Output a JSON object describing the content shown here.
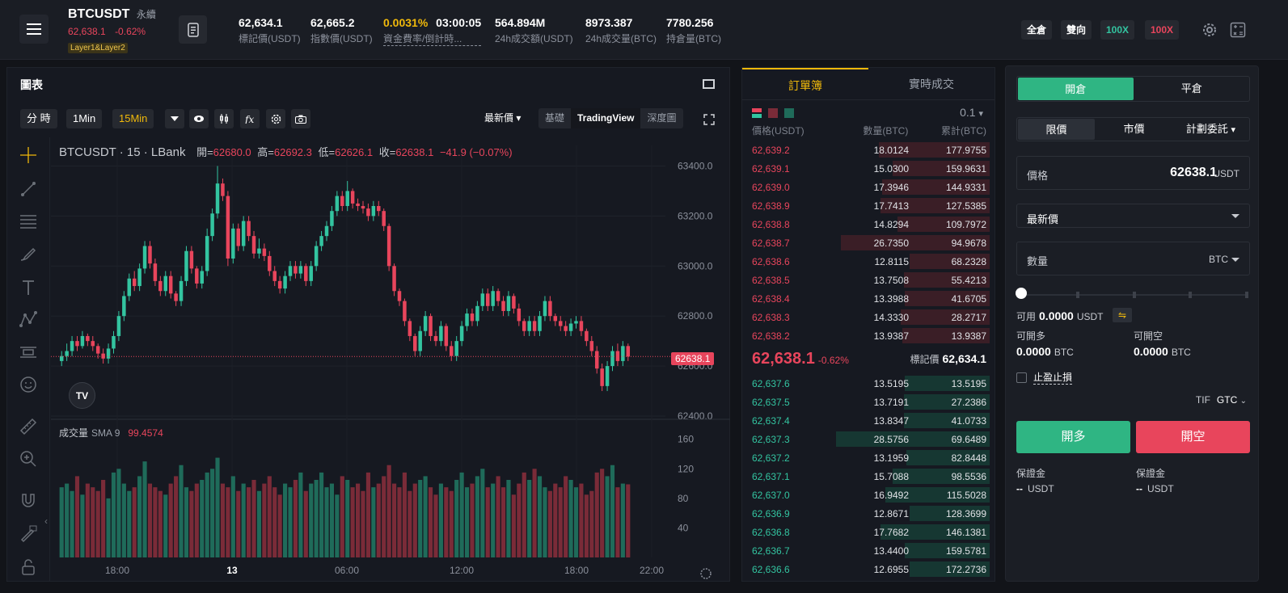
{
  "header": {
    "symbol": "BTCUSDT",
    "product_type": "永續",
    "last_price": "62,638.1",
    "change": "-0.62%",
    "tag": "Layer1&Layer2",
    "stats": [
      {
        "value": "62,634.1",
        "label": "標記價(USDT)"
      },
      {
        "value": "62,665.2",
        "label": "指數價(USDT)"
      },
      {
        "value": "0.0031%",
        "label": "資金費率/倒計時..."
      },
      {
        "value": "03:00:05",
        "label": ""
      },
      {
        "value": "564.894M",
        "label": "24h成交額(USDT)"
      },
      {
        "value": "8973.387",
        "label": "24h成交量(BTC)"
      },
      {
        "value": "7780.256",
        "label": "持倉量(BTC)"
      }
    ],
    "buttons": {
      "cross": "全倉",
      "mode": "雙向",
      "lev_long": "100X",
      "lev_short": "100X"
    }
  },
  "chart_panel": {
    "title": "圖表",
    "toolbar": {
      "timeshare": "分 時",
      "int1": "1Min",
      "int2": "15Min",
      "price_type": "最新價"
    },
    "view_tabs": [
      "基礎",
      "TradingView",
      "深度圖"
    ],
    "legend": {
      "symbol": "BTCUSDT · 15 · LBank",
      "open_label": "開=",
      "open": "62680.0",
      "high_label": "高=",
      "high": "62692.3",
      "low_label": "低=",
      "low": "62626.1",
      "close_label": "收=",
      "close": "62638.1",
      "chg": "−41.9 (−0.07%)"
    },
    "volume_legend": {
      "label": "成交量",
      "sma": "SMA 9",
      "value": "99.4574"
    },
    "price_tag": "62638.1",
    "tv_logo": "TV"
  },
  "chart_data": {
    "type": "candlestick",
    "price_axis": {
      "ticks": [
        "63400.0",
        "63200.0",
        "63000.0",
        "62800.0",
        "62600.0",
        "62400.0"
      ],
      "range": [
        62400,
        63450
      ]
    },
    "volume_axis": {
      "ticks": [
        "160",
        "120",
        "80",
        "40"
      ],
      "range": [
        0,
        175
      ]
    },
    "x_ticks": [
      "18:00",
      "13",
      "06:00",
      "12:00",
      "18:00",
      "22:00"
    ],
    "last_price": 62638.1,
    "candles": [
      [
        62620,
        62640,
        62600,
        62660
      ],
      [
        62640,
        62660,
        62620,
        62690
      ],
      [
        62660,
        62700,
        62640,
        62720
      ],
      [
        62700,
        62680,
        62660,
        62720
      ],
      [
        62680,
        62720,
        62670,
        62740
      ],
      [
        62720,
        62700,
        62680,
        62730
      ],
      [
        62700,
        62680,
        62660,
        62720
      ],
      [
        62680,
        62650,
        62630,
        62690
      ],
      [
        62650,
        62630,
        62610,
        62670
      ],
      [
        62630,
        62670,
        62610,
        62690
      ],
      [
        62670,
        62720,
        62650,
        62740
      ],
      [
        62720,
        62800,
        62700,
        62820
      ],
      [
        62800,
        62880,
        62780,
        62900
      ],
      [
        62880,
        62950,
        62860,
        62970
      ],
      [
        62950,
        62920,
        62900,
        62980
      ],
      [
        62920,
        62990,
        62900,
        63010
      ],
      [
        62990,
        63080,
        62970,
        63100
      ],
      [
        63080,
        63010,
        62990,
        63100
      ],
      [
        63010,
        62940,
        62920,
        63030
      ],
      [
        62940,
        62900,
        62880,
        62960
      ],
      [
        62900,
        62960,
        62880,
        62980
      ],
      [
        62960,
        62890,
        62870,
        62980
      ],
      [
        62890,
        62860,
        62840,
        62900
      ],
      [
        62860,
        62940,
        62840,
        62960
      ],
      [
        62940,
        63060,
        62920,
        63080
      ],
      [
        63060,
        62990,
        62970,
        63080
      ],
      [
        62990,
        62930,
        62910,
        63000
      ],
      [
        62930,
        62980,
        62910,
        63000
      ],
      [
        62980,
        63120,
        62960,
        63150
      ],
      [
        63120,
        63210,
        63100,
        63230
      ],
      [
        63210,
        63330,
        63190,
        63400
      ],
      [
        63330,
        63280,
        63260,
        63350
      ],
      [
        63280,
        63030,
        63000,
        63300
      ],
      [
        63030,
        63150,
        63010,
        63170
      ],
      [
        63150,
        63080,
        63060,
        63170
      ],
      [
        63080,
        63180,
        63060,
        63200
      ],
      [
        63180,
        63120,
        63100,
        63200
      ],
      [
        63120,
        63050,
        63030,
        63140
      ],
      [
        63050,
        63070,
        63030,
        63110
      ],
      [
        63070,
        63040,
        63020,
        63090
      ],
      [
        63040,
        62980,
        62960,
        63060
      ],
      [
        62980,
        62940,
        62920,
        63000
      ],
      [
        62940,
        62910,
        62890,
        62960
      ],
      [
        62910,
        62960,
        62890,
        62980
      ],
      [
        62960,
        63000,
        62940,
        63020
      ],
      [
        63000,
        62970,
        62950,
        63020
      ],
      [
        62970,
        63000,
        62950,
        63020
      ],
      [
        63000,
        62940,
        62920,
        63010
      ],
      [
        62940,
        63000,
        62920,
        63020
      ],
      [
        63000,
        63080,
        62980,
        63100
      ],
      [
        63080,
        63120,
        63060,
        63140
      ],
      [
        63120,
        63160,
        63100,
        63180
      ],
      [
        63160,
        63220,
        63140,
        63240
      ],
      [
        63220,
        63280,
        63200,
        63300
      ],
      [
        63280,
        63240,
        63220,
        63300
      ],
      [
        63240,
        63300,
        63220,
        63340
      ],
      [
        63300,
        63250,
        63230,
        63310
      ],
      [
        63250,
        63240,
        63220,
        63270
      ],
      [
        63240,
        63230,
        63210,
        63260
      ],
      [
        63230,
        63200,
        63180,
        63250
      ],
      [
        63200,
        63240,
        63180,
        63260
      ],
      [
        63240,
        63220,
        63200,
        63260
      ],
      [
        63220,
        63160,
        63140,
        63230
      ],
      [
        63160,
        63000,
        62980,
        63170
      ],
      [
        63000,
        62900,
        62880,
        63010
      ],
      [
        62900,
        62860,
        62840,
        62910
      ],
      [
        62860,
        62780,
        62760,
        62870
      ],
      [
        62780,
        62720,
        62700,
        62790
      ],
      [
        62720,
        62660,
        62640,
        62730
      ],
      [
        62660,
        62740,
        62640,
        62760
      ],
      [
        62740,
        62800,
        62720,
        62820
      ],
      [
        62800,
        62720,
        62700,
        62810
      ],
      [
        62720,
        62700,
        62680,
        62740
      ],
      [
        62700,
        62760,
        62680,
        62780
      ],
      [
        62760,
        62680,
        62660,
        62770
      ],
      [
        62680,
        62640,
        62620,
        62700
      ],
      [
        62640,
        62700,
        62620,
        62720
      ],
      [
        62700,
        62760,
        62680,
        62780
      ],
      [
        62760,
        62810,
        62740,
        62830
      ],
      [
        62810,
        62780,
        62760,
        62830
      ],
      [
        62780,
        62840,
        62760,
        62860
      ],
      [
        62840,
        62890,
        62820,
        62910
      ],
      [
        62890,
        62840,
        62820,
        62910
      ],
      [
        62840,
        62900,
        62820,
        62920
      ],
      [
        62900,
        62860,
        62840,
        62910
      ],
      [
        62860,
        62820,
        62800,
        62880
      ],
      [
        62820,
        62880,
        62800,
        62900
      ],
      [
        62880,
        62830,
        62810,
        62890
      ],
      [
        62830,
        62780,
        62760,
        62850
      ],
      [
        62780,
        62740,
        62720,
        62790
      ],
      [
        62740,
        62780,
        62720,
        62800
      ],
      [
        62780,
        62740,
        62720,
        62800
      ],
      [
        62740,
        62800,
        62720,
        62820
      ],
      [
        62800,
        62860,
        62780,
        62880
      ],
      [
        62860,
        62800,
        62780,
        62880
      ],
      [
        62800,
        62780,
        62760,
        62810
      ],
      [
        62780,
        62760,
        62740,
        62800
      ],
      [
        62760,
        62740,
        62720,
        62780
      ],
      [
        62740,
        62770,
        62720,
        62790
      ],
      [
        62770,
        62780,
        62750,
        62800
      ],
      [
        62780,
        62740,
        62720,
        62800
      ],
      [
        62740,
        62700,
        62680,
        62750
      ],
      [
        62700,
        62660,
        62640,
        62720
      ],
      [
        62660,
        62590,
        62570,
        62680
      ],
      [
        62590,
        62520,
        62500,
        62610
      ],
      [
        62520,
        62600,
        62500,
        62620
      ],
      [
        62600,
        62660,
        62580,
        62680
      ],
      [
        62660,
        62620,
        62600,
        62690
      ],
      [
        62620,
        62680,
        62600,
        62700
      ],
      [
        62680,
        62638,
        62620,
        62690
      ]
    ],
    "volumes": [
      95,
      100,
      90,
      110,
      85,
      100,
      95,
      90,
      105,
      80,
      115,
      120,
      100,
      90,
      95,
      110,
      130,
      100,
      95,
      90,
      85,
      100,
      110,
      125,
      95,
      90,
      100,
      105,
      115,
      120,
      135,
      100,
      95,
      110,
      90,
      100,
      95,
      105,
      90,
      100,
      110,
      95,
      85,
      100,
      95,
      105,
      115,
      90,
      100,
      105,
      115,
      95,
      100,
      85,
      110,
      105,
      95,
      100,
      90,
      115,
      95,
      100,
      110,
      125,
      100,
      95,
      115,
      90,
      100,
      105,
      110,
      95,
      85,
      100,
      95,
      90,
      105,
      115,
      95,
      100,
      110,
      120,
      95,
      100,
      110,
      95,
      105,
      85,
      100,
      115,
      105,
      120,
      110,
      95,
      90,
      100,
      95,
      110,
      105,
      95,
      100,
      85,
      90,
      115,
      120,
      110,
      125,
      95,
      100,
      99
    ]
  },
  "order_book": {
    "tabs": [
      "訂單簿",
      "實時成交"
    ],
    "precision": "0.1",
    "head": [
      "價格(USDT)",
      "數量(BTC)",
      "累計(BTC)"
    ],
    "asks": [
      {
        "p": "62,639.2",
        "q": "18.0124",
        "c": "177.9755",
        "d": 0.72
      },
      {
        "p": "62,639.1",
        "q": "15.0300",
        "c": "159.9631",
        "d": 0.63
      },
      {
        "p": "62,639.0",
        "q": "17.3946",
        "c": "144.9331",
        "d": 0.7
      },
      {
        "p": "62,638.9",
        "q": "17.7413",
        "c": "127.5385",
        "d": 0.71
      },
      {
        "p": "62,638.8",
        "q": "14.8294",
        "c": "109.7972",
        "d": 0.6
      },
      {
        "p": "62,638.7",
        "q": "26.7350",
        "c": "94.9678",
        "d": 0.97
      },
      {
        "p": "62,638.6",
        "q": "12.8115",
        "c": "68.2328",
        "d": 0.52
      },
      {
        "p": "62,638.5",
        "q": "13.7508",
        "c": "55.4213",
        "d": 0.56
      },
      {
        "p": "62,638.4",
        "q": "13.3988",
        "c": "41.6705",
        "d": 0.55
      },
      {
        "p": "62,638.3",
        "q": "14.3330",
        "c": "28.2717",
        "d": 0.58
      },
      {
        "p": "62,638.2",
        "q": "13.9387",
        "c": "13.9387",
        "d": 0.57
      }
    ],
    "mid_price": "62,638.1",
    "mid_change": "-0.62%",
    "mark_label": "標記價",
    "mark_price": "62,634.1",
    "bids": [
      {
        "p": "62,637.6",
        "q": "13.5195",
        "c": "13.5195",
        "d": 0.55
      },
      {
        "p": "62,637.5",
        "q": "13.7191",
        "c": "27.2386",
        "d": 0.56
      },
      {
        "p": "62,637.4",
        "q": "13.8347",
        "c": "41.0733",
        "d": 0.56
      },
      {
        "p": "62,637.3",
        "q": "28.5756",
        "c": "69.6489",
        "d": 1.0
      },
      {
        "p": "62,637.2",
        "q": "13.1959",
        "c": "82.8448",
        "d": 0.54
      },
      {
        "p": "62,637.1",
        "q": "15.7088",
        "c": "98.5536",
        "d": 0.63
      },
      {
        "p": "62,637.0",
        "q": "16.9492",
        "c": "115.5028",
        "d": 0.68
      },
      {
        "p": "62,636.9",
        "q": "12.8671",
        "c": "128.3699",
        "d": 0.52
      },
      {
        "p": "62,636.8",
        "q": "17.7682",
        "c": "146.1381",
        "d": 0.71
      },
      {
        "p": "62,636.7",
        "q": "13.4400",
        "c": "159.5781",
        "d": 0.55
      },
      {
        "p": "62,636.6",
        "q": "12.6955",
        "c": "172.2736",
        "d": 0.52
      }
    ]
  },
  "trade": {
    "seg": [
      "開倉",
      "平倉"
    ],
    "order_types": [
      "限價",
      "市價",
      "計劃委託"
    ],
    "price_label": "價格",
    "price_value": "62638.1",
    "price_unit": "USDT",
    "price_type": "最新價",
    "qty_label": "數量",
    "qty_unit": "BTC",
    "avail_label": "可用",
    "avail_value": "0.0000",
    "avail_unit": "USDT",
    "xfer_icon": "⇋",
    "can_long_label": "可開多",
    "can_long_value": "0.0000",
    "can_long_unit": "BTC",
    "can_short_label": "可開空",
    "can_short_value": "0.0000",
    "can_short_unit": "BTC",
    "tpsl_label": "止盈止損",
    "tif_label": "TIF",
    "tif_value": "GTC",
    "open_long": "開多",
    "open_short": "開空",
    "margin_label": "保證金",
    "margin_value": "--",
    "margin_unit": "USDT"
  }
}
